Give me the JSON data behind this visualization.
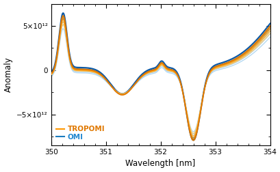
{
  "title": "",
  "xlabel": "Wavelength [nm]",
  "ylabel": "Anomaly",
  "xlim": [
    350,
    354
  ],
  "ylim": [
    -8500000000000.0,
    7500000000000.0
  ],
  "xticks": [
    350,
    351,
    352,
    353,
    354
  ],
  "yticks": [
    -5000000000000.0,
    0,
    5000000000000.0
  ],
  "omi_colors": [
    "#aad4f0",
    "#88beef",
    "#55a8e8",
    "#2288d0",
    "#0a6ab8",
    "#0050a0"
  ],
  "tropomi_colors": [
    "#ffd070",
    "#ffba40",
    "#ffa520",
    "#ff9500",
    "#e07800",
    "#c86000"
  ],
  "background_color": "#ffffff",
  "legend_tropomi": "TROPOMI",
  "legend_omi": "OMI",
  "n_omi": 6,
  "n_tropomi": 5,
  "omi_scale_range": [
    0.88,
    1.05
  ],
  "tropomi_scale_range": [
    0.92,
    1.02
  ]
}
